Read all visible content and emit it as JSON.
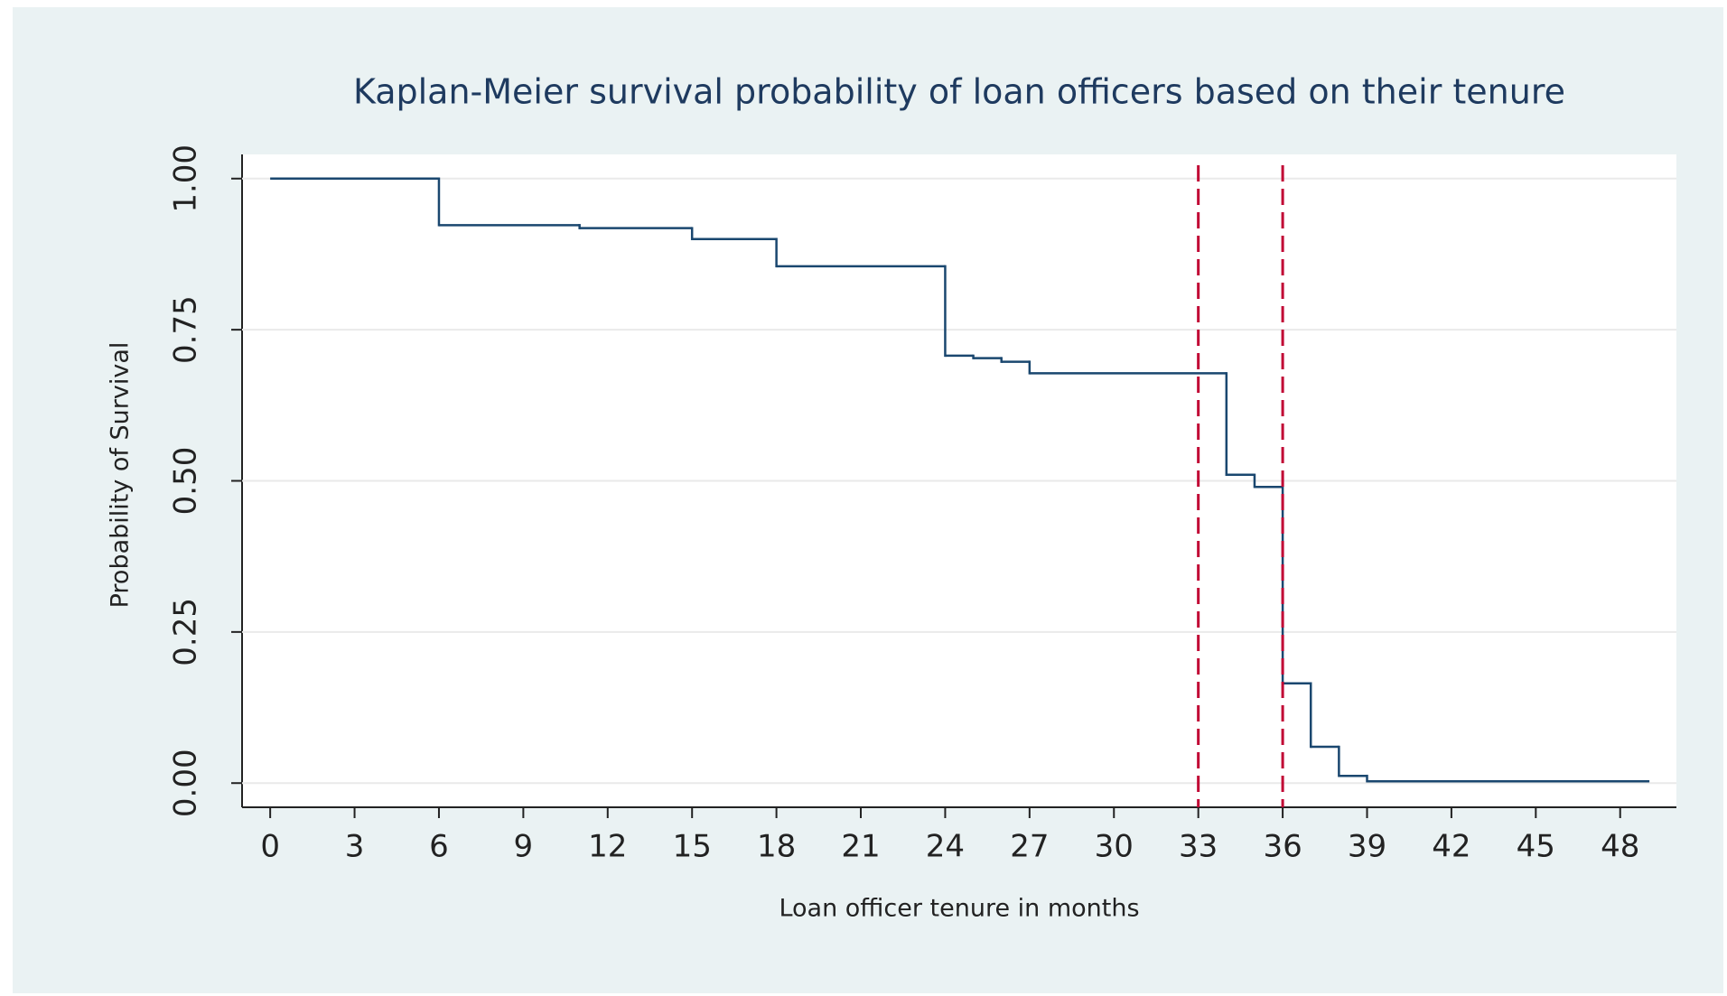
{
  "chart_data": {
    "type": "step",
    "title": "Kaplan-Meier survival probability of loan officers based on their tenure",
    "x_label": "Loan officer tenure in months",
    "y_label": "Probability of Survival",
    "x": [
      0,
      6,
      11,
      15,
      18,
      24,
      25,
      26,
      27,
      34,
      35,
      36,
      37,
      38,
      39,
      49
    ],
    "values": [
      1,
      0.923,
      0.918,
      0.9,
      0.855,
      0.707,
      0.703,
      0.697,
      0.678,
      0.51,
      0.49,
      0.165,
      0.06,
      0.012,
      0.003,
      0.003
    ],
    "color": "#1a476f",
    "vlines": [
      33,
      36
    ],
    "vline_color": "#c10534",
    "xlim": [
      -1,
      50
    ],
    "ylim": [
      -0.04,
      1.04
    ],
    "xticks": [
      0,
      3,
      6,
      9,
      12,
      15,
      18,
      21,
      24,
      27,
      30,
      33,
      36,
      39,
      42,
      45,
      48
    ],
    "yticks": [
      {
        "value": 0,
        "label": "0.00"
      },
      0.25,
      {
        "value": 0.5,
        "label": "0.50"
      },
      0.75,
      {
        "value": 1,
        "label": "1.00"
      }
    ],
    "grid": true
  }
}
